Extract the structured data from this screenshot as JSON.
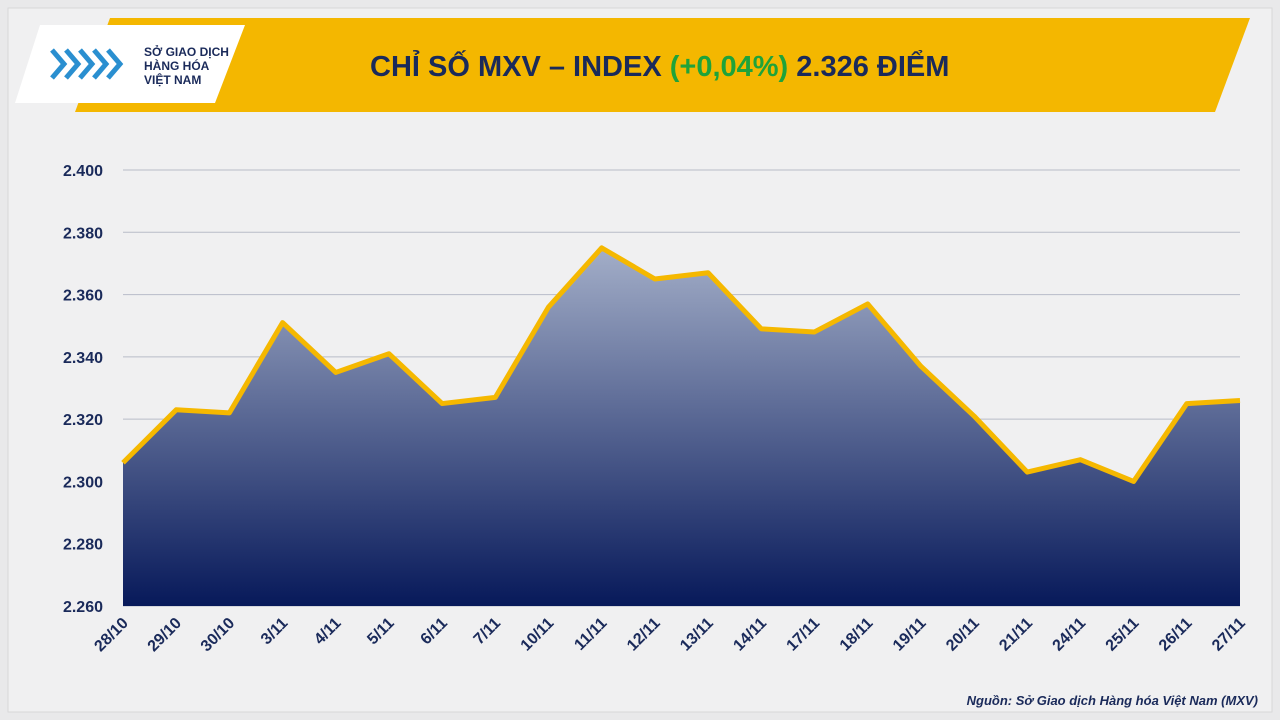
{
  "logo": [
    "SỞ GIAO DỊCH",
    "HÀNG HÓA",
    "VIỆT NAM"
  ],
  "source": "Nguồn: Sở Giao dịch Hàng hóa Việt Nam (MXV)",
  "chart_data": {
    "type": "area",
    "title": "CHỈ SỐ MXV – INDEX",
    "change": "(+0,04%)",
    "latest": "2.326 ĐIỂM",
    "categories": [
      "28/10",
      "29/10",
      "30/10",
      "3/11",
      "4/11",
      "5/11",
      "6/11",
      "7/11",
      "10/11",
      "11/11",
      "12/11",
      "13/11",
      "14/11",
      "17/11",
      "18/11",
      "19/11",
      "20/11",
      "21/11",
      "24/11",
      "25/11",
      "26/11",
      "27/11"
    ],
    "values": [
      2306,
      2323,
      2322,
      2351,
      2335,
      2341,
      2325,
      2327,
      2356,
      2375,
      2365,
      2367,
      2349,
      2348,
      2357,
      2337,
      2321,
      2303,
      2307,
      2300,
      2325,
      2326
    ],
    "color": "#f5b800",
    "fill_top": "#a3aec8",
    "fill_bottom": "#07195a",
    "change_color": "#1fa33a",
    "ylim": [
      2260,
      2400
    ],
    "yticks": [
      {
        "value": 2260,
        "label": "2.260"
      },
      {
        "value": 2280,
        "label": "2.280"
      },
      {
        "value": 2300,
        "label": "2.300"
      },
      {
        "value": 2320,
        "label": "2.320"
      },
      {
        "value": 2340,
        "label": "2.340"
      },
      {
        "value": 2360,
        "label": "2.360"
      },
      {
        "value": 2380,
        "label": "2.380"
      },
      {
        "value": 2400,
        "label": "2.400"
      }
    ],
    "grid": true
  }
}
